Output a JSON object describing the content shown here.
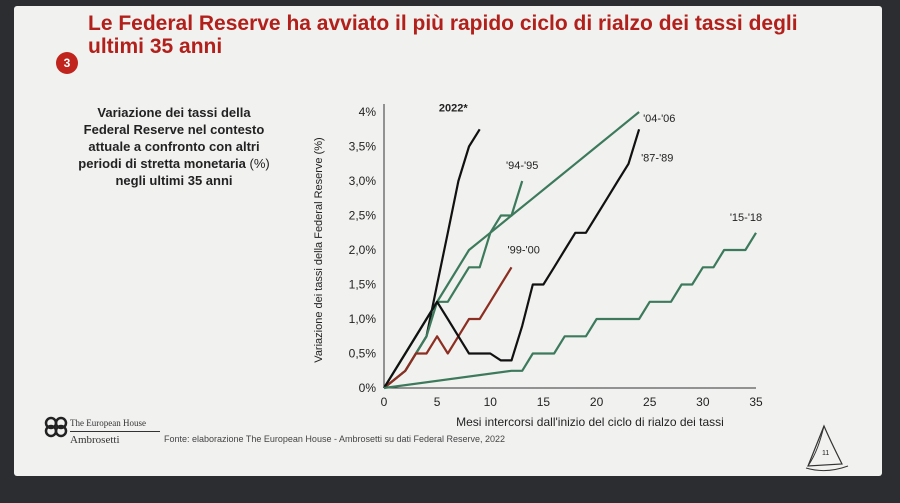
{
  "slide": {
    "title": "Le Federal Reserve ha avviato il più rapido ciclo di rialzo dei tassi degli ultimi 35 anni",
    "number": "3",
    "description_bold": "Variazione dei tassi della Federal Reserve nel contesto attuale a confronto con altri periodi di stretta monetaria",
    "description_light": "(%)",
    "description_end": "negli ultimi 35 anni",
    "logo_line1": "The European House",
    "logo_line2": "Ambrosetti",
    "source": "Fonte: elaborazione The European House - Ambrosetti su dati Federal Reserve, 2022",
    "page_number": "11"
  },
  "chart_data": {
    "type": "line",
    "xlabel": "Mesi intercorsi dall'inizio del ciclo di rialzo dei tassi",
    "ylabel": "Variazione dei tassi della Federal Reserve (%)",
    "xlim": [
      0,
      35
    ],
    "ylim": [
      0,
      4
    ],
    "xticks": [
      "0",
      "5",
      "10",
      "15",
      "20",
      "25",
      "30",
      "35"
    ],
    "yticks": [
      "0%",
      "0,5%",
      "1,0%",
      "1,5%",
      "2,0%",
      "2,5%",
      "3,0%",
      "3,5%",
      "4%"
    ],
    "grid": false,
    "legend": "inline labels",
    "series": [
      {
        "name": "2022*",
        "color": "#111111",
        "x": [
          0,
          2,
          4,
          5,
          6,
          7,
          8,
          9
        ],
        "y": [
          0,
          0.25,
          0.75,
          1.5,
          2.25,
          3.0,
          3.5,
          3.75
        ]
      },
      {
        "name": "'94-'95",
        "color": "#3d7a5c",
        "x": [
          0,
          2,
          3,
          4,
          5,
          6,
          7,
          8,
          9,
          10,
          11,
          12,
          13
        ],
        "y": [
          0,
          0.25,
          0.5,
          0.75,
          1.25,
          1.25,
          1.5,
          1.75,
          1.75,
          2.25,
          2.5,
          2.5,
          3.0
        ]
      },
      {
        "name": "'99-'00",
        "color": "#8c2e22",
        "x": [
          0,
          2,
          3,
          4,
          5,
          6,
          7,
          8,
          9,
          10,
          11,
          12
        ],
        "y": [
          0,
          0.25,
          0.5,
          0.5,
          0.75,
          0.5,
          0.75,
          1.0,
          1.0,
          1.25,
          1.5,
          1.75
        ]
      },
      {
        "name": "'04-'06",
        "color": "#3d7a5c",
        "x": [
          0,
          2,
          4,
          6,
          8,
          10,
          12,
          14,
          16,
          18,
          20,
          22,
          24
        ],
        "y": [
          0,
          0.5,
          1.0,
          1.5,
          2.0,
          2.25,
          2.5,
          2.75,
          3.0,
          3.25,
          3.5,
          3.75,
          4.0
        ]
      },
      {
        "name": "'87-'89",
        "color": "#111111",
        "x": [
          0,
          2,
          4,
          5,
          6,
          7,
          8,
          10,
          11,
          12,
          13,
          14,
          15,
          16,
          17,
          18,
          19,
          20,
          21,
          22,
          23,
          24
        ],
        "y": [
          0,
          0.5,
          1.0,
          1.25,
          1.0,
          0.75,
          0.5,
          0.5,
          0.4,
          0.4,
          0.9,
          1.5,
          1.5,
          1.75,
          2.0,
          2.25,
          2.25,
          2.5,
          2.75,
          3.0,
          3.25,
          3.75
        ]
      },
      {
        "name": "'15-'18",
        "color": "#3d7a5c",
        "x": [
          0,
          12,
          13,
          14,
          16,
          17,
          19,
          20,
          24,
          25,
          27,
          28,
          29,
          30,
          31,
          32,
          34,
          35
        ],
        "y": [
          0,
          0.25,
          0.25,
          0.5,
          0.5,
          0.75,
          0.75,
          1.0,
          1.0,
          1.25,
          1.25,
          1.5,
          1.5,
          1.75,
          1.75,
          2.0,
          2.0,
          2.25
        ]
      }
    ]
  }
}
